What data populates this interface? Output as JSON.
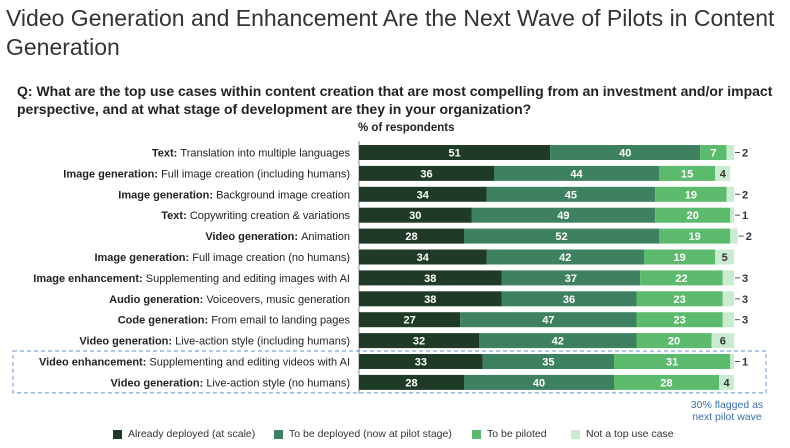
{
  "title": "Video Generation and Enhancement Are the Next Wave of Pilots in Content Generation",
  "question": "Q: What are the top use cases within content creation that are most compelling from an investment and/or impact perspective, and at what stage of development are they in your organization?",
  "note": "30% flagged as next pilot wave",
  "colors": {
    "deployed": "#1f3a26",
    "to_be_deployed": "#3e8160",
    "to_be_piloted": "#5cba6d",
    "not_top": "#c9ecd0",
    "highlight": "#7fa7d4",
    "note": "#3a6fa8"
  },
  "chart_data": {
    "type": "bar",
    "orientation": "horizontal",
    "stacked": true,
    "unit_label": "% of respondents",
    "categories": [
      {
        "prefix": "Text:",
        "suffix": "Translation into multiple languages"
      },
      {
        "prefix": "Image generation:",
        "suffix": "Full image creation (including humans)"
      },
      {
        "prefix": "Image generation:",
        "suffix": "Background image creation"
      },
      {
        "prefix": "Text:",
        "suffix": "Copywriting creation & variations"
      },
      {
        "prefix": "Video generation:",
        "suffix": "Animation"
      },
      {
        "prefix": "Image generation:",
        "suffix": "Full image creation (no humans)"
      },
      {
        "prefix": "Image enhancement:",
        "suffix": "Supplementing and editing images with AI"
      },
      {
        "prefix": "Audio generation:",
        "suffix": "Voiceovers, music generation"
      },
      {
        "prefix": "Code generation:",
        "suffix": "From email to landing pages"
      },
      {
        "prefix": "Video generation:",
        "suffix": "Live-action style (including humans)"
      },
      {
        "prefix": "Video enhancement:",
        "suffix": "Supplementing and editing videos with AI"
      },
      {
        "prefix": "Video generation:",
        "suffix": "Live-action style (no humans)"
      }
    ],
    "series": [
      {
        "name": "Already deployed (at scale)",
        "values": [
          51,
          36,
          34,
          30,
          28,
          34,
          38,
          38,
          27,
          32,
          33,
          28
        ]
      },
      {
        "name": "To be deployed (now at pilot stage)",
        "values": [
          40,
          44,
          45,
          49,
          52,
          42,
          37,
          36,
          47,
          42,
          35,
          40
        ]
      },
      {
        "name": "To be piloted",
        "values": [
          7,
          15,
          19,
          20,
          19,
          19,
          22,
          23,
          23,
          20,
          31,
          28
        ]
      },
      {
        "name": "Not a top use case",
        "values": [
          2,
          4,
          2,
          1,
          2,
          5,
          3,
          3,
          3,
          6,
          1,
          4
        ]
      }
    ],
    "highlighted_rows": [
      10,
      11
    ],
    "xlim": [
      0,
      100
    ],
    "legend_position": "bottom"
  }
}
